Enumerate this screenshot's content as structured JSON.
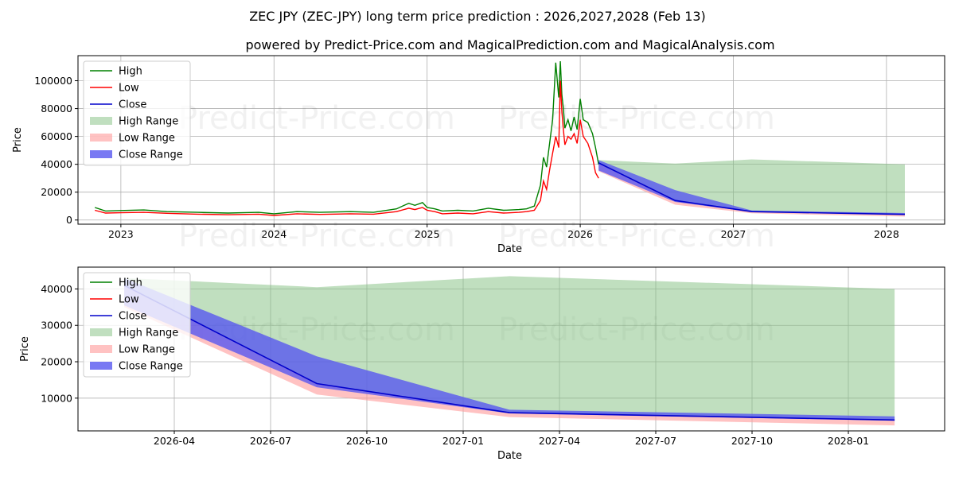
{
  "title": "ZEC JPY (ZEC-JPY) long term price prediction : 2026,2027,2028 (Feb 13)",
  "subtitle": "powered by Predict-Price.com and MagicalPrediction.com and MagicalAnalysis.com",
  "watermark": "Predict-Price.com",
  "colors": {
    "high": "#008000",
    "low": "#ff0000",
    "close": "#0000cc",
    "high_range": "#82c080",
    "low_range": "#ff9a9a",
    "close_range": "#5858f0",
    "grid": "#b0b0b0"
  },
  "legend": [
    "High",
    "Low",
    "Close",
    "High Range",
    "Low Range",
    "Close Range"
  ],
  "chart_data": [
    {
      "type": "line",
      "name": "top",
      "xlabel": "Date",
      "ylabel": "Price",
      "xlim": [
        2022.72,
        2028.38
      ],
      "ylim": [
        -3000,
        118000
      ],
      "xticks": [
        {
          "v": 2023.0,
          "label": "2023"
        },
        {
          "v": 2024.0,
          "label": "2024"
        },
        {
          "v": 2025.0,
          "label": "2025"
        },
        {
          "v": 2026.0,
          "label": "2026"
        },
        {
          "v": 2027.0,
          "label": "2027"
        },
        {
          "v": 2028.0,
          "label": "2028"
        }
      ],
      "yticks": [
        {
          "v": 0,
          "label": "0"
        },
        {
          "v": 20000,
          "label": "20000"
        },
        {
          "v": 40000,
          "label": "40000"
        },
        {
          "v": 60000,
          "label": "60000"
        },
        {
          "v": 80000,
          "label": "80000"
        },
        {
          "v": 100000,
          "label": "100000"
        }
      ],
      "history_x": [
        2022.83,
        2022.9,
        2023.0,
        2023.15,
        2023.3,
        2023.5,
        2023.7,
        2023.9,
        2024.0,
        2024.15,
        2024.3,
        2024.5,
        2024.65,
        2024.8,
        2024.88,
        2024.92,
        2024.97,
        2025.0,
        2025.05,
        2025.1,
        2025.2,
        2025.3,
        2025.4,
        2025.5,
        2025.6,
        2025.65,
        2025.7,
        2025.74,
        2025.76,
        2025.78,
        2025.8,
        2025.82,
        2025.84,
        2025.86,
        2025.87,
        2025.88,
        2025.89,
        2025.9,
        2025.92,
        2025.94,
        2025.96,
        2025.98,
        2026.0,
        2026.02,
        2026.05,
        2026.08,
        2026.1,
        2026.12
      ],
      "history_high": [
        9000,
        6500,
        6800,
        7200,
        6000,
        5500,
        5000,
        5500,
        4500,
        6000,
        5500,
        6000,
        5500,
        8000,
        12000,
        10500,
        12500,
        9000,
        8000,
        6500,
        7000,
        6500,
        8500,
        7000,
        7500,
        8000,
        10000,
        25000,
        45000,
        38000,
        55000,
        72000,
        113000,
        88000,
        114000,
        90000,
        80000,
        66000,
        72000,
        64000,
        74000,
        65000,
        87000,
        72000,
        70000,
        62000,
        52000,
        40000
      ],
      "history_low": [
        7000,
        5000,
        5200,
        5500,
        4800,
        4200,
        3800,
        4200,
        3300,
        4500,
        4000,
        4500,
        4200,
        6000,
        8500,
        7500,
        9000,
        7000,
        6000,
        4500,
        5000,
        4500,
        6000,
        5000,
        5500,
        6000,
        7000,
        14000,
        28000,
        22000,
        36000,
        48000,
        60000,
        52000,
        100000,
        78000,
        65000,
        54000,
        60000,
        58000,
        62000,
        55000,
        72000,
        60000,
        55000,
        45000,
        34000,
        30000
      ],
      "forecast_x": [
        2026.12,
        2026.62,
        2027.12,
        2028.12
      ],
      "forecast_close": [
        41000,
        14000,
        6000,
        4000
      ],
      "high_range_upper": [
        43000,
        40500,
        43500,
        40000
      ],
      "low_range_lower": [
        35000,
        11000,
        4800,
        2500
      ],
      "close_range_upper": [
        43000,
        21500,
        6800,
        5000
      ],
      "close_range_lower": [
        35500,
        13000,
        5800,
        3800
      ]
    },
    {
      "type": "area",
      "name": "bottom",
      "xlabel": "Date",
      "ylabel": "Price",
      "xlim": [
        2026.0,
        2028.25
      ],
      "ylim": [
        1000,
        46000
      ],
      "xticks": [
        {
          "v": 2026.25,
          "label": "2026-04"
        },
        {
          "v": 2026.5,
          "label": "2026-07"
        },
        {
          "v": 2026.75,
          "label": "2026-10"
        },
        {
          "v": 2027.0,
          "label": "2027-01"
        },
        {
          "v": 2027.25,
          "label": "2027-04"
        },
        {
          "v": 2027.5,
          "label": "2027-07"
        },
        {
          "v": 2027.75,
          "label": "2027-10"
        },
        {
          "v": 2028.0,
          "label": "2028-01"
        }
      ],
      "yticks": [
        {
          "v": 10000,
          "label": "10000"
        },
        {
          "v": 20000,
          "label": "20000"
        },
        {
          "v": 30000,
          "label": "30000"
        },
        {
          "v": 40000,
          "label": "40000"
        }
      ],
      "forecast_x": [
        2026.12,
        2026.62,
        2027.12,
        2028.12
      ],
      "forecast_close": [
        41000,
        14000,
        6000,
        4000
      ],
      "high_range_upper": [
        43000,
        40500,
        43500,
        40000
      ],
      "low_range_lower": [
        35000,
        11000,
        4800,
        2500
      ],
      "close_range_upper": [
        43000,
        21500,
        6800,
        5000
      ],
      "close_range_lower": [
        35500,
        13000,
        5800,
        3800
      ]
    }
  ]
}
